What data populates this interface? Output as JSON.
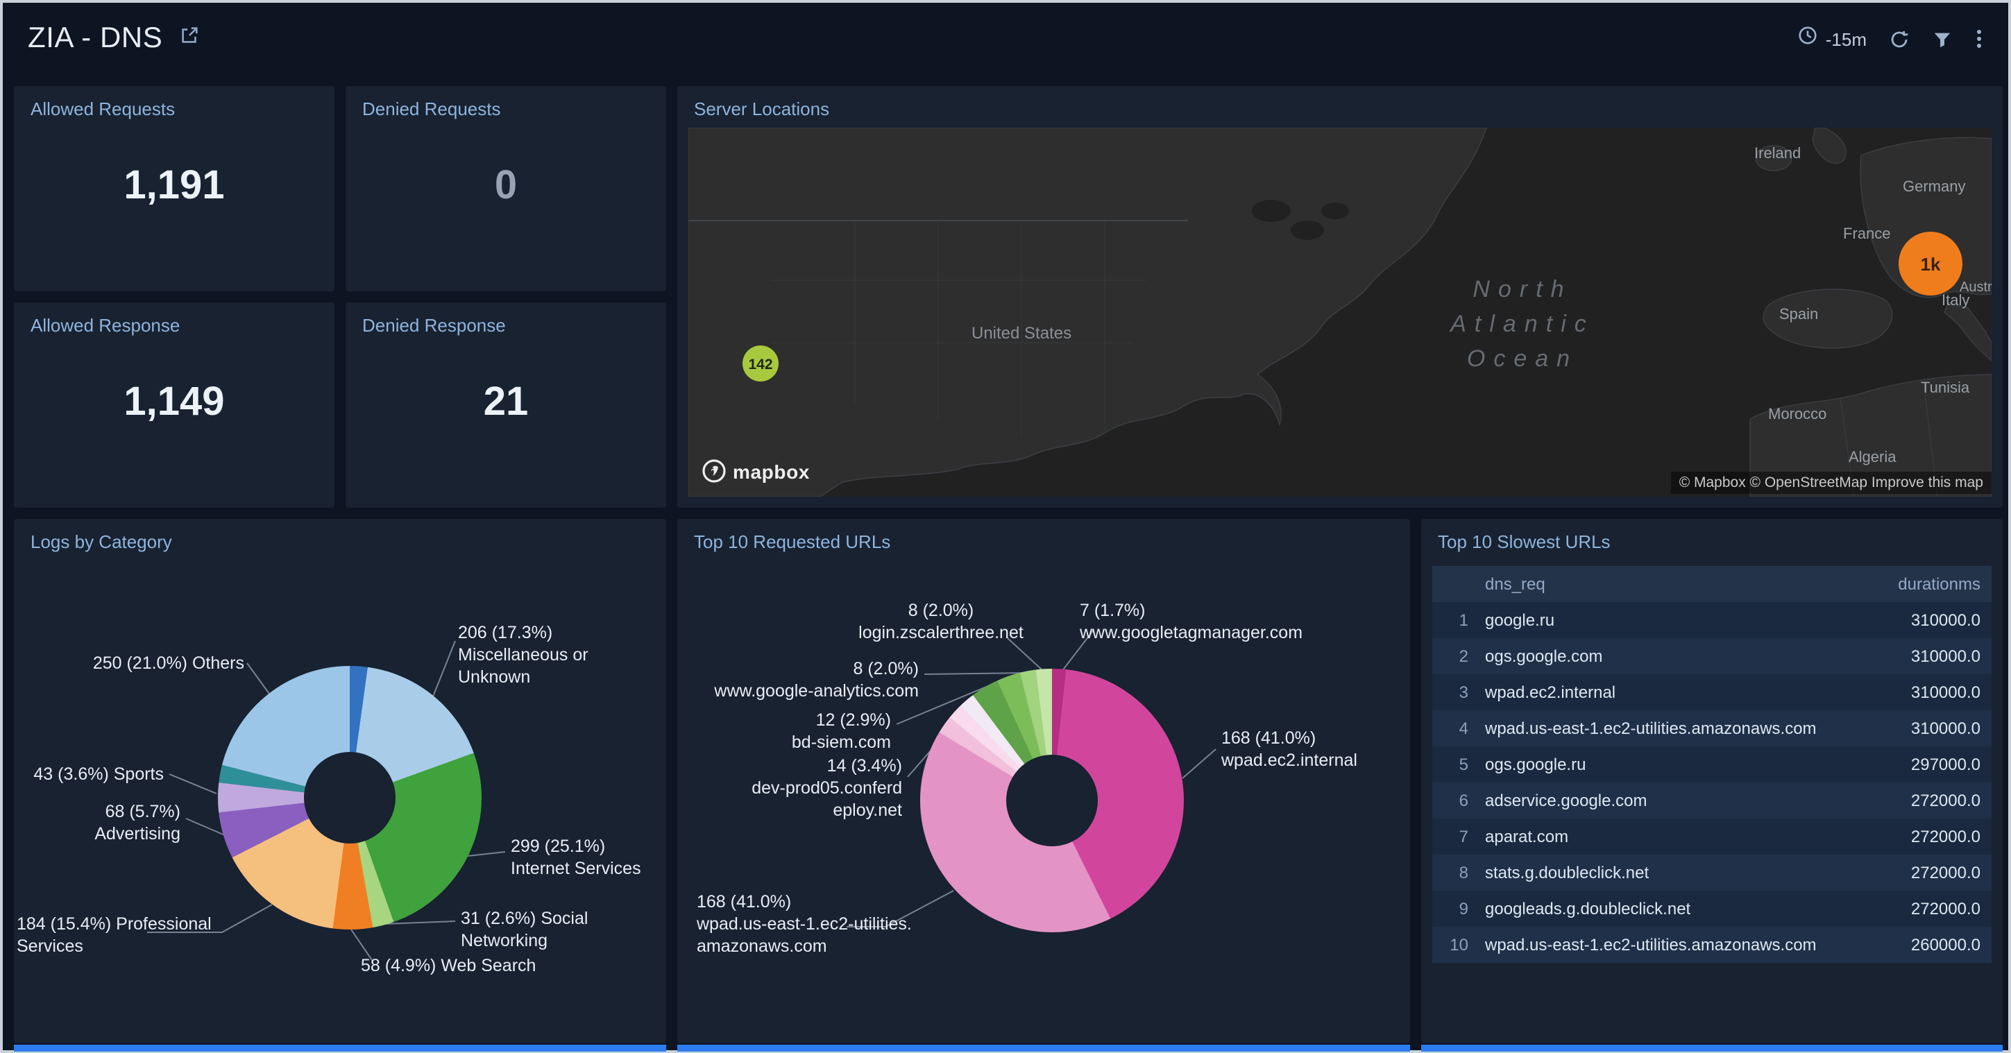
{
  "colors": {
    "page-bg": "#0d1422",
    "panel-bg": "#182231",
    "title-text": "#8fb4dc",
    "value-text": "#edf2f8",
    "value-dim": "#97a2b2",
    "accent-blue": "#2d7df0",
    "icon-gray": "#9db1ca",
    "table-header-bg": "#233349",
    "row-odd": "#1a2940",
    "row-even": "#203049",
    "cell-text": "#dfe8f2",
    "index-text": "#8da0bb",
    "map-ocean": "#212121",
    "map-land": "#2e2e2e",
    "map-border": "#44494f",
    "label-text": "#e8eef5",
    "leader": "#8a94a3"
  },
  "header": {
    "title": "ZIA - DNS",
    "time_range": "-15m"
  },
  "stats": [
    {
      "label": "Allowed Requests",
      "value": "1,191"
    },
    {
      "label": "Denied Requests",
      "value": "0"
    },
    {
      "label": "Allowed Response",
      "value": "1,149"
    },
    {
      "label": "Denied Response",
      "value": "21"
    }
  ],
  "map": {
    "title": "Server Locations",
    "markers": [
      {
        "label": "142",
        "color": "#a8c93d"
      },
      {
        "label": "1k",
        "color": "#f07d1c"
      }
    ],
    "labels": {
      "united_states": "United States",
      "ireland": "Ireland",
      "germany": "Germany",
      "france": "France",
      "austria": "Austr",
      "italy": "Italy",
      "spain": "Spain",
      "tunisia": "Tunisia",
      "morocco": "Morocco",
      "algeria": "Algeria",
      "ocean_1": "North",
      "ocean_2": "Atlantic",
      "ocean_3": "Ocean"
    },
    "logo_text": "mapbox",
    "attribution": "© Mapbox © OpenStreetMap Improve this map"
  },
  "chart_data": [
    {
      "type": "pie",
      "title": "Logs by Category",
      "donut": true,
      "series": [
        {
          "name": "",
          "value": 26,
          "color": "#3272c0"
        },
        {
          "name": "Miscellaneous or Unknown",
          "value": 206,
          "pct": "17.3%",
          "color": "#a9cde8",
          "label_lines": [
            "206 (17.3%)",
            "Miscellaneous or",
            "Unknown"
          ]
        },
        {
          "name": "Internet Services",
          "value": 299,
          "pct": "25.1%",
          "color": "#3fa23c",
          "label_lines": [
            "299 (25.1%)",
            "Internet Services"
          ]
        },
        {
          "name": "Social Networking",
          "value": 31,
          "pct": "2.6%",
          "color": "#a8d57f",
          "label_lines": [
            "31 (2.6%) Social",
            "Networking"
          ]
        },
        {
          "name": "Web Search",
          "value": 58,
          "pct": "4.9%",
          "color": "#f07f23",
          "label_lines": [
            "58 (4.9%) Web Search"
          ]
        },
        {
          "name": "Professional Services",
          "value": 184,
          "pct": "15.4%",
          "color": "#f5bf7e",
          "label_lines": [
            "184 (15.4%) Professional",
            "Services"
          ]
        },
        {
          "name": "Advertising",
          "value": 68,
          "pct": "5.7%",
          "color": "#8a5fc0",
          "label_lines": [
            "68 (5.7%)",
            "Advertising"
          ]
        },
        {
          "name": "Sports",
          "value": 43,
          "pct": "3.6%",
          "color": "#c0a9dc",
          "label_lines": [
            "43 (3.6%) Sports"
          ]
        },
        {
          "name": "",
          "value": 26,
          "color": "#2f8f99"
        },
        {
          "name": "Others",
          "value": 250,
          "pct": "21.0%",
          "color": "#9cc6e8",
          "label_lines": [
            "250 (21.0%) Others"
          ]
        }
      ]
    },
    {
      "type": "pie",
      "title": "Top 10 Requested URLs",
      "donut": true,
      "series": [
        {
          "name": "www.googletagmanager.com",
          "value": 7,
          "pct": "1.7%",
          "color": "#b52e84",
          "label_lines": [
            "7 (1.7%)",
            "www.googletagmanager.com"
          ]
        },
        {
          "name": "wpad.ec2.internal",
          "value": 168,
          "pct": "41.0%",
          "color": "#d2459c",
          "label_lines": [
            "168 (41.0%)",
            "wpad.ec2.internal"
          ]
        },
        {
          "name": "wpad.us-east-1.ec2-utilities.amazonaws.com",
          "value": 168,
          "pct": "41.0%",
          "color": "#e493c6",
          "label_lines": [
            "168 (41.0%)",
            "wpad.us-east-1.ec2-utilities.",
            "amazonaws.com"
          ]
        },
        {
          "name": "",
          "value": 9,
          "color": "#f2bfdd"
        },
        {
          "name": "",
          "value": 8,
          "color": "#f8dcee"
        },
        {
          "name": "",
          "value": 8,
          "color": "#f1eaf4"
        },
        {
          "name": "dev-prod05.conferdeploy.net",
          "value": 14,
          "pct": "3.4%",
          "color": "#5fa348",
          "label_lines": [
            "14 (3.4%)",
            "dev-prod05.conferd",
            "eploy.net"
          ]
        },
        {
          "name": "bd-siem.com",
          "value": 12,
          "pct": "2.9%",
          "color": "#7cbd59",
          "label_lines": [
            "12 (2.9%)",
            "bd-siem.com"
          ]
        },
        {
          "name": "www.google-analytics.com",
          "value": 8,
          "pct": "2.0%",
          "color": "#a2d37f",
          "label_lines": [
            "8 (2.0%)",
            "www.google-analytics.com"
          ]
        },
        {
          "name": "login.zscalerthree.net",
          "value": 8,
          "pct": "2.0%",
          "color": "#c6e5a9",
          "label_lines": [
            "8 (2.0%)",
            "login.zscalerthree.net"
          ]
        }
      ]
    },
    {
      "type": "table",
      "title": "Top 10 Slowest URLs",
      "columns": [
        "dns_req",
        "durationms"
      ],
      "rows": [
        [
          "google.ru",
          "310000.0"
        ],
        [
          "ogs.google.com",
          "310000.0"
        ],
        [
          "wpad.ec2.internal",
          "310000.0"
        ],
        [
          "wpad.us-east-1.ec2-utilities.amazonaws.com",
          "310000.0"
        ],
        [
          "ogs.google.ru",
          "297000.0"
        ],
        [
          "adservice.google.com",
          "272000.0"
        ],
        [
          "aparat.com",
          "272000.0"
        ],
        [
          "stats.g.doubleclick.net",
          "272000.0"
        ],
        [
          "googleads.g.doubleclick.net",
          "272000.0"
        ],
        [
          "wpad.us-east-1.ec2-utilities.amazonaws.com",
          "260000.0"
        ]
      ]
    }
  ]
}
